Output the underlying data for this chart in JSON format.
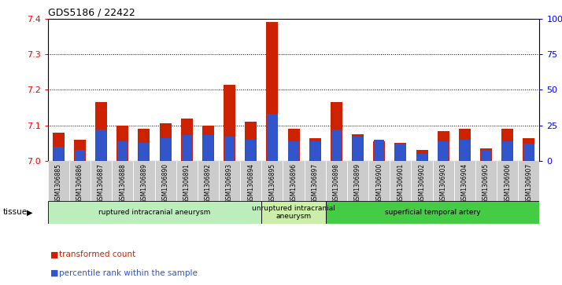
{
  "title": "GDS5186 / 22422",
  "samples": [
    "GSM1306885",
    "GSM1306886",
    "GSM1306887",
    "GSM1306888",
    "GSM1306889",
    "GSM1306890",
    "GSM1306891",
    "GSM1306892",
    "GSM1306893",
    "GSM1306894",
    "GSM1306895",
    "GSM1306896",
    "GSM1306897",
    "GSM1306898",
    "GSM1306899",
    "GSM1306900",
    "GSM1306901",
    "GSM1306902",
    "GSM1306903",
    "GSM1306904",
    "GSM1306905",
    "GSM1306906",
    "GSM1306907"
  ],
  "transformed_count": [
    7.08,
    7.06,
    7.165,
    7.1,
    7.09,
    7.105,
    7.12,
    7.1,
    7.215,
    7.11,
    7.39,
    7.09,
    7.065,
    7.165,
    7.075,
    7.055,
    7.05,
    7.03,
    7.085,
    7.09,
    7.035,
    7.09,
    7.065
  ],
  "percentile_rank": [
    10,
    8,
    22,
    14,
    13,
    16,
    18,
    18,
    17,
    15,
    33,
    14,
    14,
    22,
    17,
    15,
    12,
    5,
    14,
    15,
    8,
    14,
    12
  ],
  "ylim_left": [
    7.0,
    7.4
  ],
  "ylim_right": [
    0,
    100
  ],
  "yticks_left": [
    7.0,
    7.1,
    7.2,
    7.3,
    7.4
  ],
  "yticks_right": [
    0,
    25,
    50,
    75,
    100
  ],
  "ytick_labels_right": [
    "0",
    "25",
    "50",
    "75",
    "100%"
  ],
  "bar_color": "#cc2200",
  "percentile_color": "#3355cc",
  "bg_color": "#cccccc",
  "plot_bg_color": "#ffffff",
  "tissue_groups": [
    {
      "label": "ruptured intracranial aneurysm",
      "start": 0,
      "end": 10,
      "color": "#bbeebb"
    },
    {
      "label": "unruptured intracranial\naneurysm",
      "start": 10,
      "end": 13,
      "color": "#cceeaa"
    },
    {
      "label": "superficial temporal artery",
      "start": 13,
      "end": 23,
      "color": "#44cc44"
    }
  ],
  "legend_items": [
    {
      "label": "transformed count",
      "color": "#cc2200"
    },
    {
      "label": "percentile rank within the sample",
      "color": "#3355cc"
    }
  ],
  "bar_width": 0.55
}
